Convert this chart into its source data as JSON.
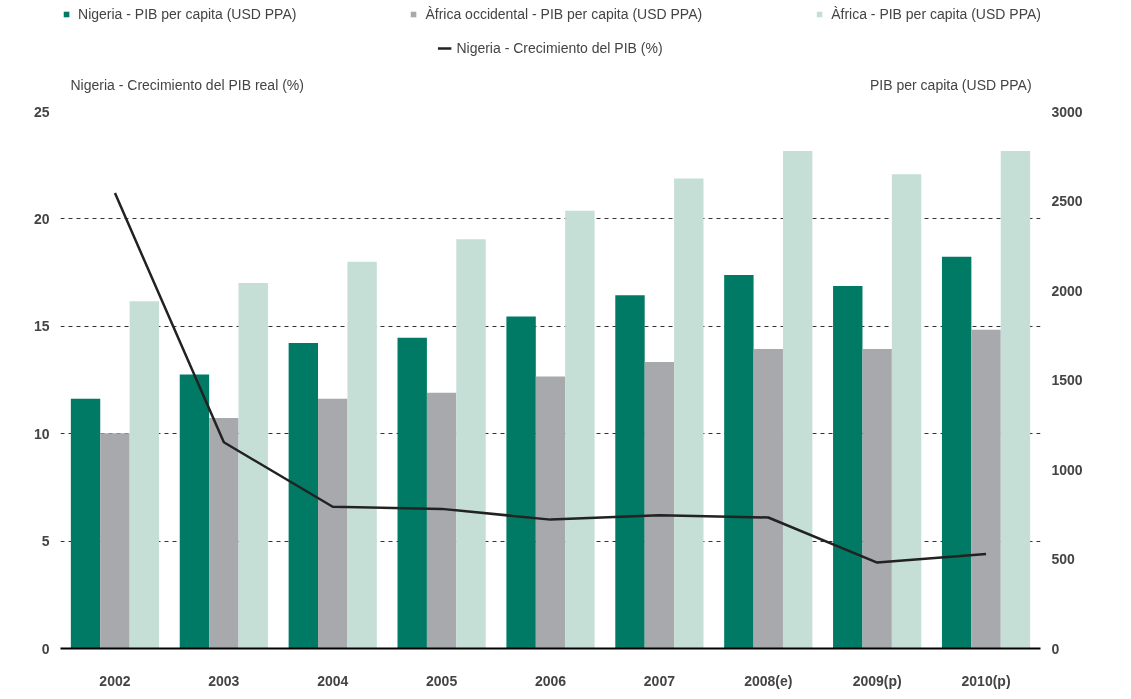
{
  "chart_data": {
    "type": "bar",
    "categories": [
      "2002",
      "2003",
      "2004",
      "2005",
      "2006",
      "2007",
      "2008(e)",
      "2009(p)",
      "2010(p)"
    ],
    "ylabel": "Nigeria - Crecimiento del PIB real (%)",
    "y2label": "PIB per capita  (USD PPA)",
    "ylim": [
      0,
      25
    ],
    "yticks": [
      0,
      5,
      10,
      15,
      20,
      25
    ],
    "y2lim": [
      0,
      3000
    ],
    "y2ticks": [
      0,
      500,
      1000,
      1500,
      2000,
      2500,
      3000
    ],
    "grid": "y",
    "legend": "top",
    "series": [
      {
        "name": "Nigeria - PIB per capita (USD PPA)",
        "axis": "y2",
        "color": "#007a64",
        "values": [
          1395,
          1531,
          1707,
          1736,
          1855,
          1974,
          2087,
          2025,
          2189
        ]
      },
      {
        "name": "Àfrica occidental - PIB per capita (USD PPA)",
        "axis": "y2",
        "color": "#a7a9ac",
        "values": [
          1202,
          1288,
          1395,
          1429,
          1520,
          1600,
          1673,
          1673,
          1781
        ]
      },
      {
        "name": "Àfrica - PIB per capita (USD PPA)",
        "axis": "y2",
        "color": "#c5ded6",
        "values": [
          1940,
          2042,
          2161,
          2286,
          2445,
          2626,
          2779,
          2649,
          2779
        ]
      },
      {
        "name": "Nigeria - Crecimiento del PIB (%)",
        "type": "line",
        "axis": "y",
        "color": "#222222",
        "values": [
          21.2,
          9.6,
          6.6,
          6.5,
          6.0,
          6.2,
          6.1,
          4.0,
          4.4
        ]
      }
    ]
  }
}
